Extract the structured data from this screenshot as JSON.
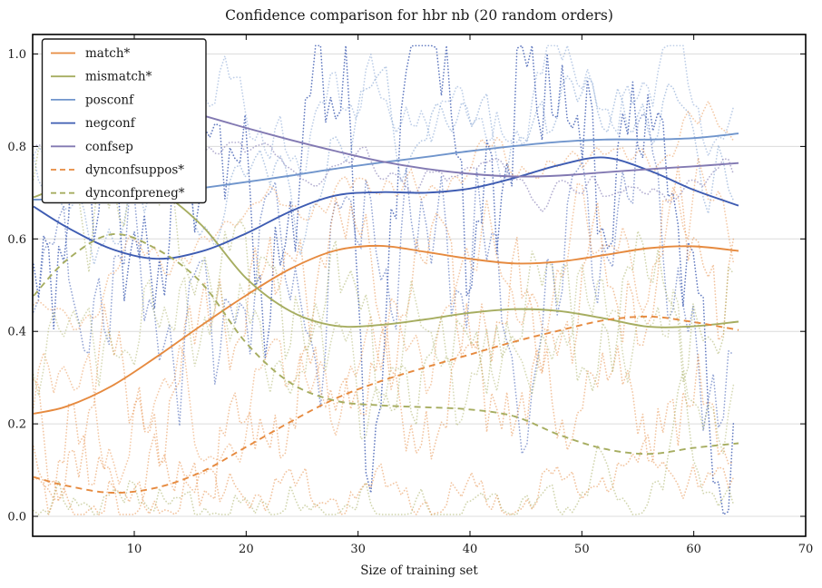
{
  "chart_data": {
    "type": "line",
    "title": "Confidence comparison for hbr nb (20 random orders)",
    "xlabel": "Size of training set",
    "ylabel": "",
    "xlim": [
      0.92,
      70
    ],
    "ylim": [
      -0.043,
      1.042
    ],
    "xticks": [
      10,
      20,
      30,
      40,
      50,
      60,
      70
    ],
    "xtick_labels": [
      "10",
      "20",
      "30",
      "40",
      "50",
      "60",
      "70"
    ],
    "yticks": [
      0.0,
      0.2,
      0.4,
      0.6,
      0.8,
      1.0
    ],
    "ytick_labels": [
      "0.0",
      "0.2",
      "0.4",
      "0.6",
      "0.8",
      "1.0"
    ],
    "grid": "horizontal",
    "grid_color": "#dcdcdc",
    "spine_color": "#000000",
    "legend_position": "upper-left",
    "colors": {
      "orange": "#e68a3f",
      "olive": "#a6ad60",
      "lightblue": "#7095cc",
      "darkblue": "#3e5cb2",
      "purple": "#8279b2"
    },
    "series": [
      {
        "name": "match*",
        "color": "orange",
        "style": "solid",
        "x": [
          1,
          4,
          8,
          12,
          16,
          20,
          24,
          28,
          32,
          36,
          40,
          44,
          48,
          52,
          56,
          60,
          64
        ],
        "values": [
          0.222,
          0.238,
          0.282,
          0.345,
          0.413,
          0.478,
          0.536,
          0.575,
          0.585,
          0.572,
          0.557,
          0.547,
          0.551,
          0.565,
          0.58,
          0.584,
          0.574
        ]
      },
      {
        "name": "mismatch*",
        "color": "olive",
        "style": "solid",
        "x": [
          1,
          4,
          8,
          12,
          16,
          20,
          24,
          28,
          32,
          36,
          40,
          44,
          48,
          52,
          56,
          60,
          64
        ],
        "values": [
          0.69,
          0.716,
          0.735,
          0.706,
          0.63,
          0.515,
          0.443,
          0.412,
          0.414,
          0.426,
          0.44,
          0.448,
          0.444,
          0.428,
          0.41,
          0.411,
          0.421
        ]
      },
      {
        "name": "posconf",
        "color": "lightblue",
        "style": "solid",
        "x": [
          1,
          4,
          8,
          12,
          16,
          20,
          24,
          28,
          32,
          36,
          40,
          44,
          48,
          52,
          56,
          60,
          64
        ],
        "values": [
          0.685,
          0.686,
          0.69,
          0.699,
          0.71,
          0.723,
          0.737,
          0.752,
          0.765,
          0.777,
          0.79,
          0.801,
          0.81,
          0.815,
          0.815,
          0.818,
          0.828
        ]
      },
      {
        "name": "negconf",
        "color": "darkblue",
        "style": "solid",
        "x": [
          1,
          4,
          8,
          12,
          16,
          20,
          24,
          28,
          32,
          36,
          40,
          44,
          48,
          52,
          56,
          60,
          64
        ],
        "values": [
          0.67,
          0.625,
          0.578,
          0.557,
          0.573,
          0.612,
          0.66,
          0.694,
          0.701,
          0.7,
          0.709,
          0.732,
          0.76,
          0.776,
          0.748,
          0.706,
          0.672
        ]
      },
      {
        "name": "confsep",
        "color": "purple",
        "style": "solid",
        "x": [
          14,
          16,
          20,
          24,
          28,
          32,
          36,
          40,
          44,
          48,
          52,
          56,
          60,
          64
        ],
        "values": [
          0.882,
          0.868,
          0.84,
          0.814,
          0.79,
          0.768,
          0.752,
          0.741,
          0.735,
          0.737,
          0.744,
          0.751,
          0.757,
          0.764
        ]
      },
      {
        "name": "dynconfsuppos*",
        "color": "orange",
        "style": "dashed",
        "x": [
          1,
          4,
          8,
          12,
          16,
          20,
          24,
          28,
          32,
          36,
          40,
          44,
          48,
          52,
          56,
          60,
          64
        ],
        "values": [
          0.085,
          0.066,
          0.051,
          0.062,
          0.096,
          0.15,
          0.205,
          0.255,
          0.292,
          0.322,
          0.35,
          0.378,
          0.402,
          0.424,
          0.432,
          0.42,
          0.403
        ]
      },
      {
        "name": "dynconfpreneg*",
        "color": "olive",
        "style": "dashed",
        "x": [
          1,
          4,
          8,
          12,
          16,
          20,
          24,
          28,
          32,
          36,
          40,
          44,
          48,
          52,
          56,
          60,
          64
        ],
        "values": [
          0.477,
          0.555,
          0.61,
          0.578,
          0.505,
          0.375,
          0.288,
          0.25,
          0.24,
          0.236,
          0.231,
          0.216,
          0.176,
          0.146,
          0.135,
          0.148,
          0.158
        ]
      }
    ],
    "background_runs": {
      "approximate": true,
      "style": "dotted",
      "x_range": [
        1,
        64
      ],
      "runs": [
        {
          "color": "lightblue",
          "opacity": 0.5,
          "seed": 7,
          "amp": 0.12,
          "jag": 1.4,
          "base": "posconf"
        },
        {
          "color": "lightblue",
          "opacity": 0.45,
          "seed": 21,
          "amp": 0.1,
          "jag": 1.6,
          "base": [
            [
              1,
              0.82
            ],
            [
              20,
              0.86
            ],
            [
              40,
              0.87
            ],
            [
              64,
              0.9
            ]
          ],
          "peaks": [
            {
              "x": 32,
              "a": 0.12,
              "w": 1.5
            },
            {
              "x": 48,
              "a": 0.1,
              "w": 1.5
            },
            {
              "x": 58,
              "a": 0.1,
              "w": 1.2
            }
          ]
        },
        {
          "color": "darkblue",
          "opacity": 0.8,
          "seed": 33,
          "amp": 0.26,
          "jag": 2.1,
          "base": [
            [
              1,
              0.62
            ],
            [
              12,
              0.55
            ],
            [
              30,
              0.7
            ],
            [
              52,
              0.75
            ],
            [
              64,
              0.6
            ]
          ],
          "dips": [
            {
              "x": 31.5,
              "a": 0.55,
              "w": 1.0
            },
            {
              "x": 63,
              "a": 0.6,
              "w": 0.9
            }
          ],
          "peaks": [
            {
              "x": 36,
              "a": 0.3,
              "w": 1.0
            },
            {
              "x": 50,
              "a": 0.25,
              "w": 1.2
            }
          ]
        },
        {
          "color": "darkblue",
          "opacity": 0.55,
          "seed": 44,
          "amp": 0.22,
          "jag": 1.9,
          "base": [
            [
              1,
              0.5
            ],
            [
              15,
              0.45
            ],
            [
              35,
              0.6
            ],
            [
              55,
              0.65
            ],
            [
              64,
              0.45
            ]
          ],
          "dips": [
            {
              "x": 44,
              "a": 0.4,
              "w": 1.2
            },
            {
              "x": 62,
              "a": 0.45,
              "w": 1.0
            }
          ]
        },
        {
          "color": "purple",
          "opacity": 0.6,
          "seed": 55,
          "amp": 0.05,
          "jag": 1.2,
          "base": [
            [
              1,
              0.8
            ],
            [
              25,
              0.77
            ],
            [
              45,
              0.72
            ],
            [
              64,
              0.7
            ]
          ]
        },
        {
          "color": "orange",
          "opacity": 0.5,
          "seed": 66,
          "amp": 0.17,
          "jag": 1.8,
          "base": "match*"
        },
        {
          "color": "orange",
          "opacity": 0.5,
          "seed": 77,
          "amp": 0.14,
          "jag": 2.2,
          "base": [
            [
              1,
              0.12
            ],
            [
              12,
              0.14
            ],
            [
              30,
              0.3
            ],
            [
              50,
              0.33
            ],
            [
              64,
              0.2
            ]
          ]
        },
        {
          "color": "orange",
          "opacity": 0.45,
          "seed": 88,
          "amp": 0.13,
          "jag": 1.7,
          "base": [
            [
              1,
              0.3
            ],
            [
              18,
              0.18
            ],
            [
              40,
              0.5
            ],
            [
              64,
              0.62
            ]
          ]
        },
        {
          "color": "orange",
          "opacity": 0.45,
          "seed": 99,
          "amp": 0.06,
          "jag": 1.3,
          "base": [
            [
              1,
              0.45
            ],
            [
              25,
              0.68
            ],
            [
              45,
              0.76
            ],
            [
              64,
              0.8
            ]
          ]
        },
        {
          "color": "olive",
          "opacity": 0.5,
          "seed": 111,
          "amp": 0.15,
          "jag": 1.7,
          "base": "mismatch*"
        },
        {
          "color": "olive",
          "opacity": 0.45,
          "seed": 122,
          "amp": 0.14,
          "jag": 1.9,
          "base": [
            [
              1,
              0.38
            ],
            [
              12,
              0.52
            ],
            [
              30,
              0.25
            ],
            [
              50,
              0.35
            ],
            [
              64,
              0.28
            ]
          ]
        },
        {
          "color": "olive",
          "opacity": 0.5,
          "seed": 133,
          "amp": 0.05,
          "jag": 2.3,
          "base": [
            [
              1,
              0.03
            ],
            [
              30,
              0.02
            ],
            [
              64,
              0.04
            ]
          ],
          "peaks": [
            {
              "x": 59,
              "a": 0.25,
              "w": 0.8
            },
            {
              "x": 51.5,
              "a": 0.05,
              "w": 1.0
            }
          ]
        },
        {
          "color": "orange",
          "opacity": 0.5,
          "seed": 144,
          "amp": 0.06,
          "jag": 2.4,
          "base": [
            [
              1,
              0.05
            ],
            [
              25,
              0.04
            ],
            [
              64,
              0.1
            ]
          ]
        }
      ]
    },
    "legend": {
      "entries": [
        "match*",
        "mismatch*",
        "posconf",
        "negconf",
        "confsep",
        "dynconfsuppos*",
        "dynconfpreneg*"
      ]
    }
  }
}
